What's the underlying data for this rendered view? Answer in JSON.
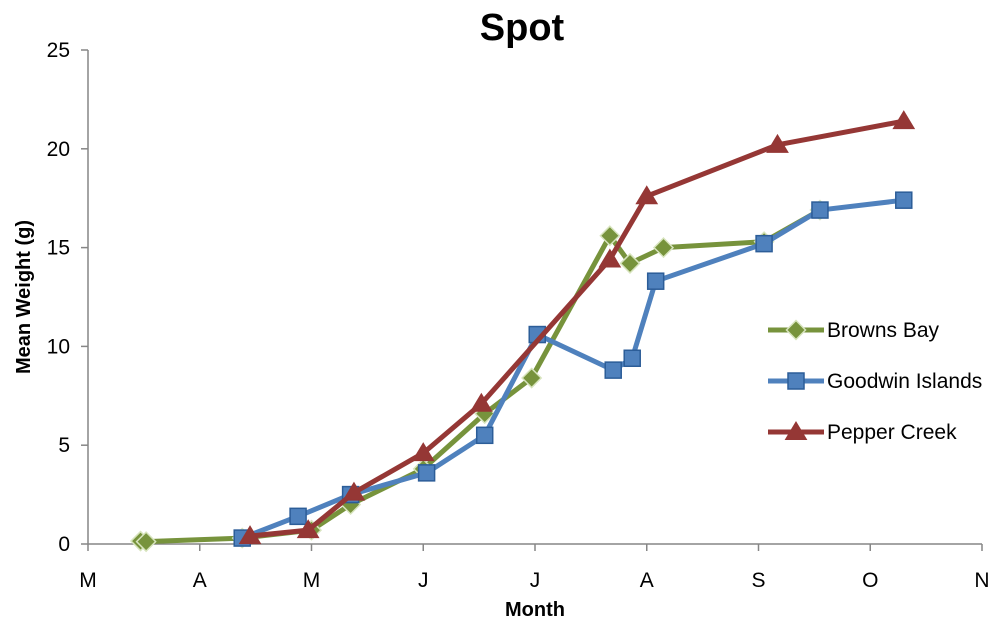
{
  "chart_data": {
    "type": "line",
    "title": "Spot",
    "xlabel": "Month",
    "ylabel": "Mean Weight (g)",
    "xlim": [
      0,
      8
    ],
    "ylim": [
      0,
      25
    ],
    "x_ticks": [
      0,
      1,
      2,
      3,
      4,
      5,
      6,
      7,
      8
    ],
    "x_tick_labels": [
      "M",
      "A",
      "M",
      "J",
      "J",
      "A",
      "S",
      "O",
      "N"
    ],
    "y_ticks": [
      0,
      5,
      10,
      15,
      20,
      25
    ],
    "y_tick_labels": [
      "0",
      "5",
      "10",
      "15",
      "20",
      "25"
    ],
    "grid": false,
    "legend_position": "right",
    "series": [
      {
        "name": "Browns Bay",
        "color": "#77933C",
        "marker": "diamond",
        "x": [
          0.47,
          0.52,
          1.38,
          2.0,
          2.35,
          3.0,
          3.55,
          3.97,
          4.67,
          4.85,
          5.15,
          6.05,
          6.55
        ],
        "y": [
          0.15,
          0.12,
          0.3,
          0.7,
          2.0,
          3.8,
          6.6,
          8.4,
          15.6,
          14.2,
          15.0,
          15.3,
          16.9
        ]
      },
      {
        "name": "Goodwin Islands",
        "color": "#4F81BD",
        "marker": "square",
        "x": [
          1.38,
          1.88,
          2.35,
          3.03,
          3.55,
          4.02,
          4.7,
          4.87,
          5.08,
          6.05,
          6.55,
          7.3
        ],
        "y": [
          0.3,
          1.4,
          2.5,
          3.6,
          5.5,
          10.6,
          8.8,
          9.4,
          13.3,
          15.2,
          16.9,
          17.4
        ]
      },
      {
        "name": "Pepper Creek",
        "color": "#953735",
        "marker": "triangle",
        "x": [
          1.45,
          1.97,
          2.38,
          3.0,
          3.52,
          4.67,
          5.0,
          6.17,
          7.3
        ],
        "y": [
          0.4,
          0.7,
          2.6,
          4.6,
          7.1,
          14.4,
          17.6,
          20.2,
          21.4
        ]
      }
    ]
  }
}
